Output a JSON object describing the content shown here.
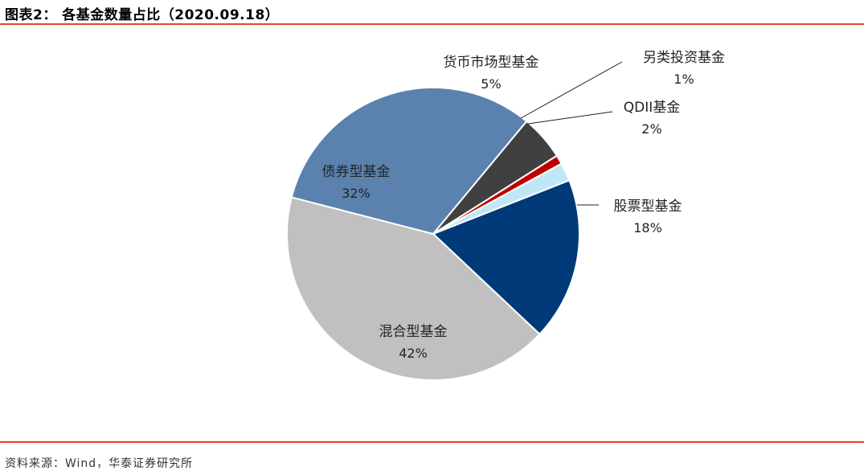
{
  "figure": {
    "title": "图表2：  各基金数量占比（2020.09.18）",
    "source": "资料来源：Wind，华泰证券研究所"
  },
  "colors": {
    "accent_rule": "#e8412c"
  },
  "chart_data": {
    "type": "pie",
    "title": "",
    "slices": [
      {
        "label": "股票型基金",
        "value": 18,
        "display": "18%",
        "color": "#003A78"
      },
      {
        "label": "混合型基金",
        "value": 42,
        "display": "42%",
        "color": "#C0C0C0"
      },
      {
        "label": "债券型基金",
        "value": 32,
        "display": "32%",
        "color": "#5B82AE"
      },
      {
        "label": "货币市场型基金",
        "value": 5,
        "display": "5%",
        "color": "#404040"
      },
      {
        "label": "另类投资基金",
        "value": 1,
        "display": "1%",
        "color": "#C00000"
      },
      {
        "label": "QDII基金",
        "value": 2,
        "display": "2%",
        "color": "#BFE8F7"
      }
    ],
    "legend": "none",
    "label_style": "category name and percent"
  }
}
